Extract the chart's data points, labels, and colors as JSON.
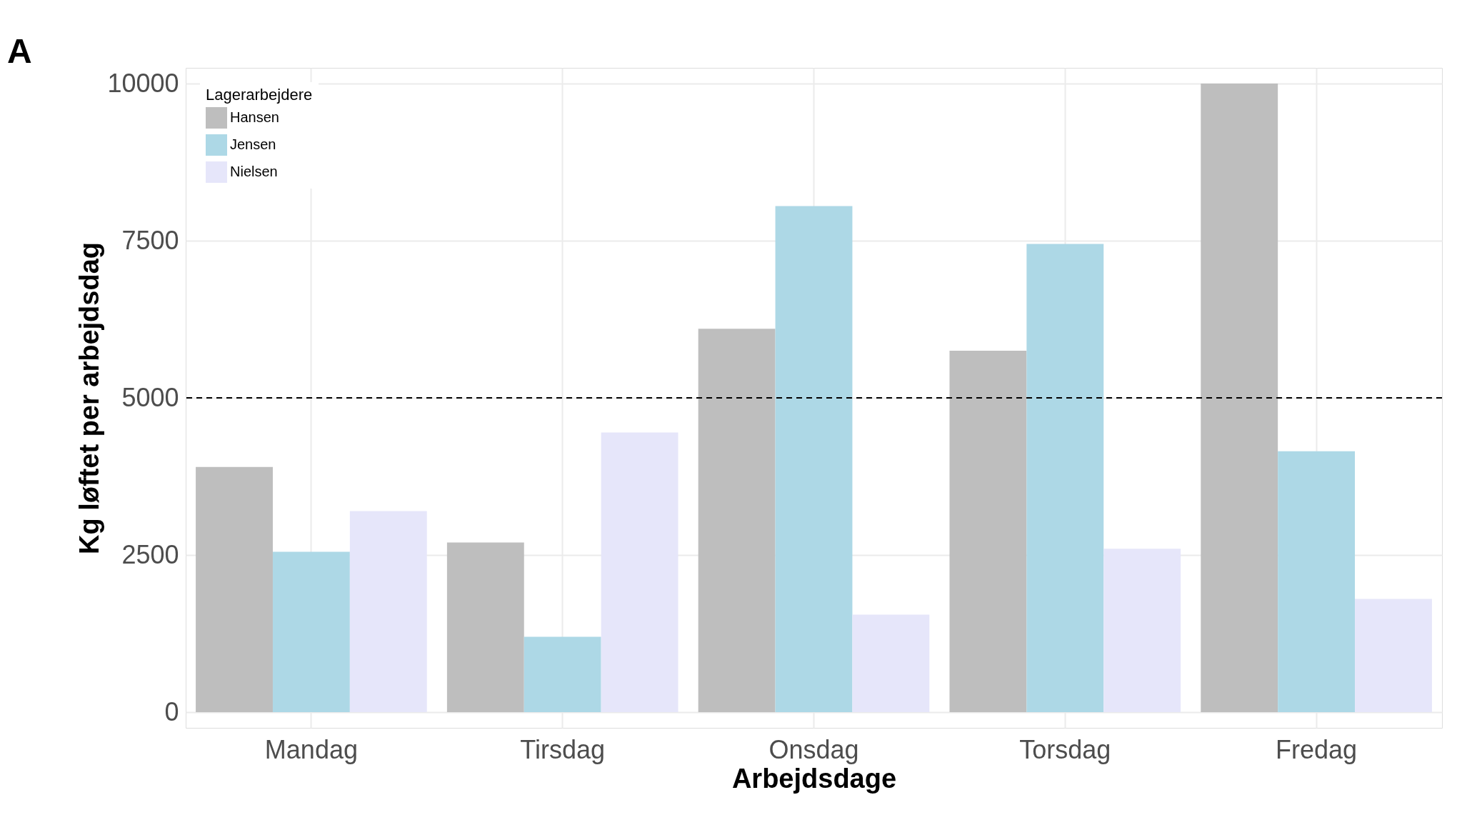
{
  "chart_data": {
    "type": "bar",
    "xlabel": "Arbejdsdage",
    "ylabel": "Kg løftet per arbejdsdag",
    "legend_title": "Lagerarbejdere",
    "categories": [
      "Mandag",
      "Tirsdag",
      "Onsdag",
      "Torsdag",
      "Fredag"
    ],
    "series": [
      {
        "name": "Hansen",
        "color": "#bebebe",
        "values": [
          3900,
          2700,
          6100,
          5750,
          10000
        ]
      },
      {
        "name": "Jensen",
        "color": "#add8e6",
        "values": [
          2550,
          1200,
          8050,
          7450,
          4150
        ]
      },
      {
        "name": "Nielsen",
        "color": "#e6e6fa",
        "values": [
          3200,
          4450,
          1550,
          2600,
          1800
        ]
      }
    ],
    "ylim": [
      -250,
      10250
    ],
    "yticks": [
      0,
      2500,
      5000,
      7500,
      10000
    ],
    "grid": true,
    "legend": "top left",
    "ref_lines": [
      {
        "axis": "y",
        "value": 5000,
        "line_style": "dashed",
        "color": "#000000"
      }
    ],
    "annotations": [
      "A"
    ]
  }
}
